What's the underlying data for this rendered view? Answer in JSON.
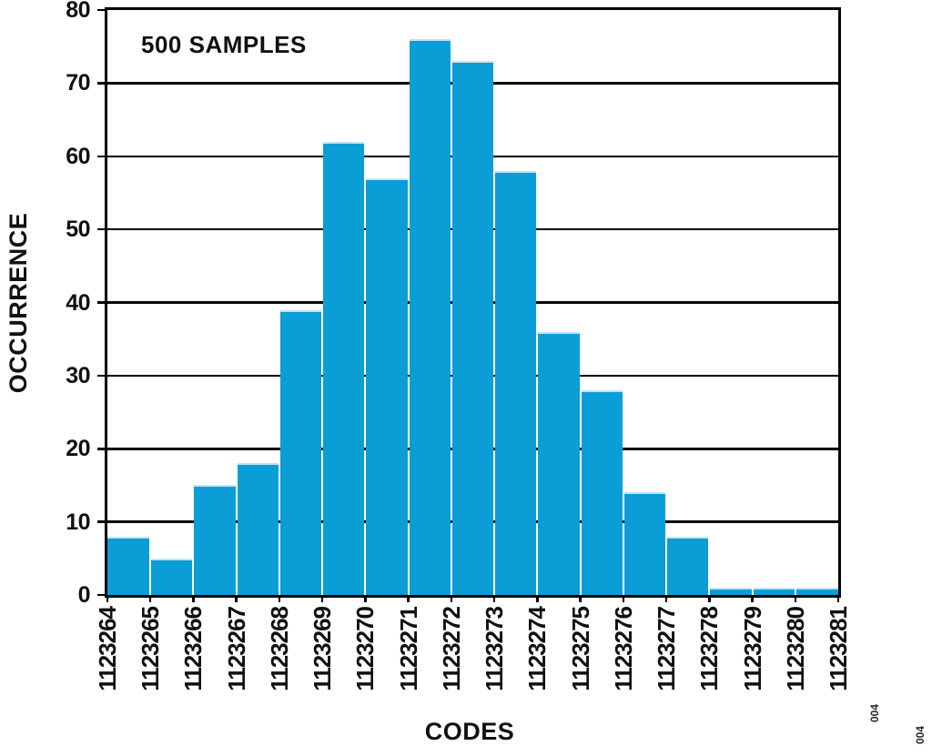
{
  "figure": {
    "annotation": "500 SAMPLES",
    "watermarks": [
      "004",
      "004"
    ]
  },
  "chart_data": {
    "type": "bar",
    "title": "",
    "xlabel": "CODES",
    "ylabel": "OCCURRENCE",
    "annotation": "500 SAMPLES",
    "x_tick_labels": [
      "1123264",
      "1123265",
      "1123266",
      "1123267",
      "1123268",
      "1123269",
      "1123270",
      "1123271",
      "1123272",
      "1123273",
      "1123274",
      "1123275",
      "1123276",
      "1123277",
      "1123278",
      "1123279",
      "1123280",
      "1123281"
    ],
    "categories": [
      "1123264",
      "1123265",
      "1123266",
      "1123267",
      "1123268",
      "1123269",
      "1123270",
      "1123271",
      "1123272",
      "1123273",
      "1123274",
      "1123275",
      "1123276",
      "1123277",
      "1123278",
      "1123279",
      "1123280"
    ],
    "values": [
      8,
      5,
      15,
      18,
      39,
      62,
      57,
      76,
      73,
      58,
      36,
      28,
      14,
      8,
      1,
      1,
      1
    ],
    "ylim": [
      0,
      80
    ],
    "ytick_step": 10,
    "grid": true,
    "legend_position": "none",
    "bar_color": "#0a9dd6",
    "grid_color": "#000000",
    "axis_color": "#000000",
    "text_color": "#111111"
  }
}
